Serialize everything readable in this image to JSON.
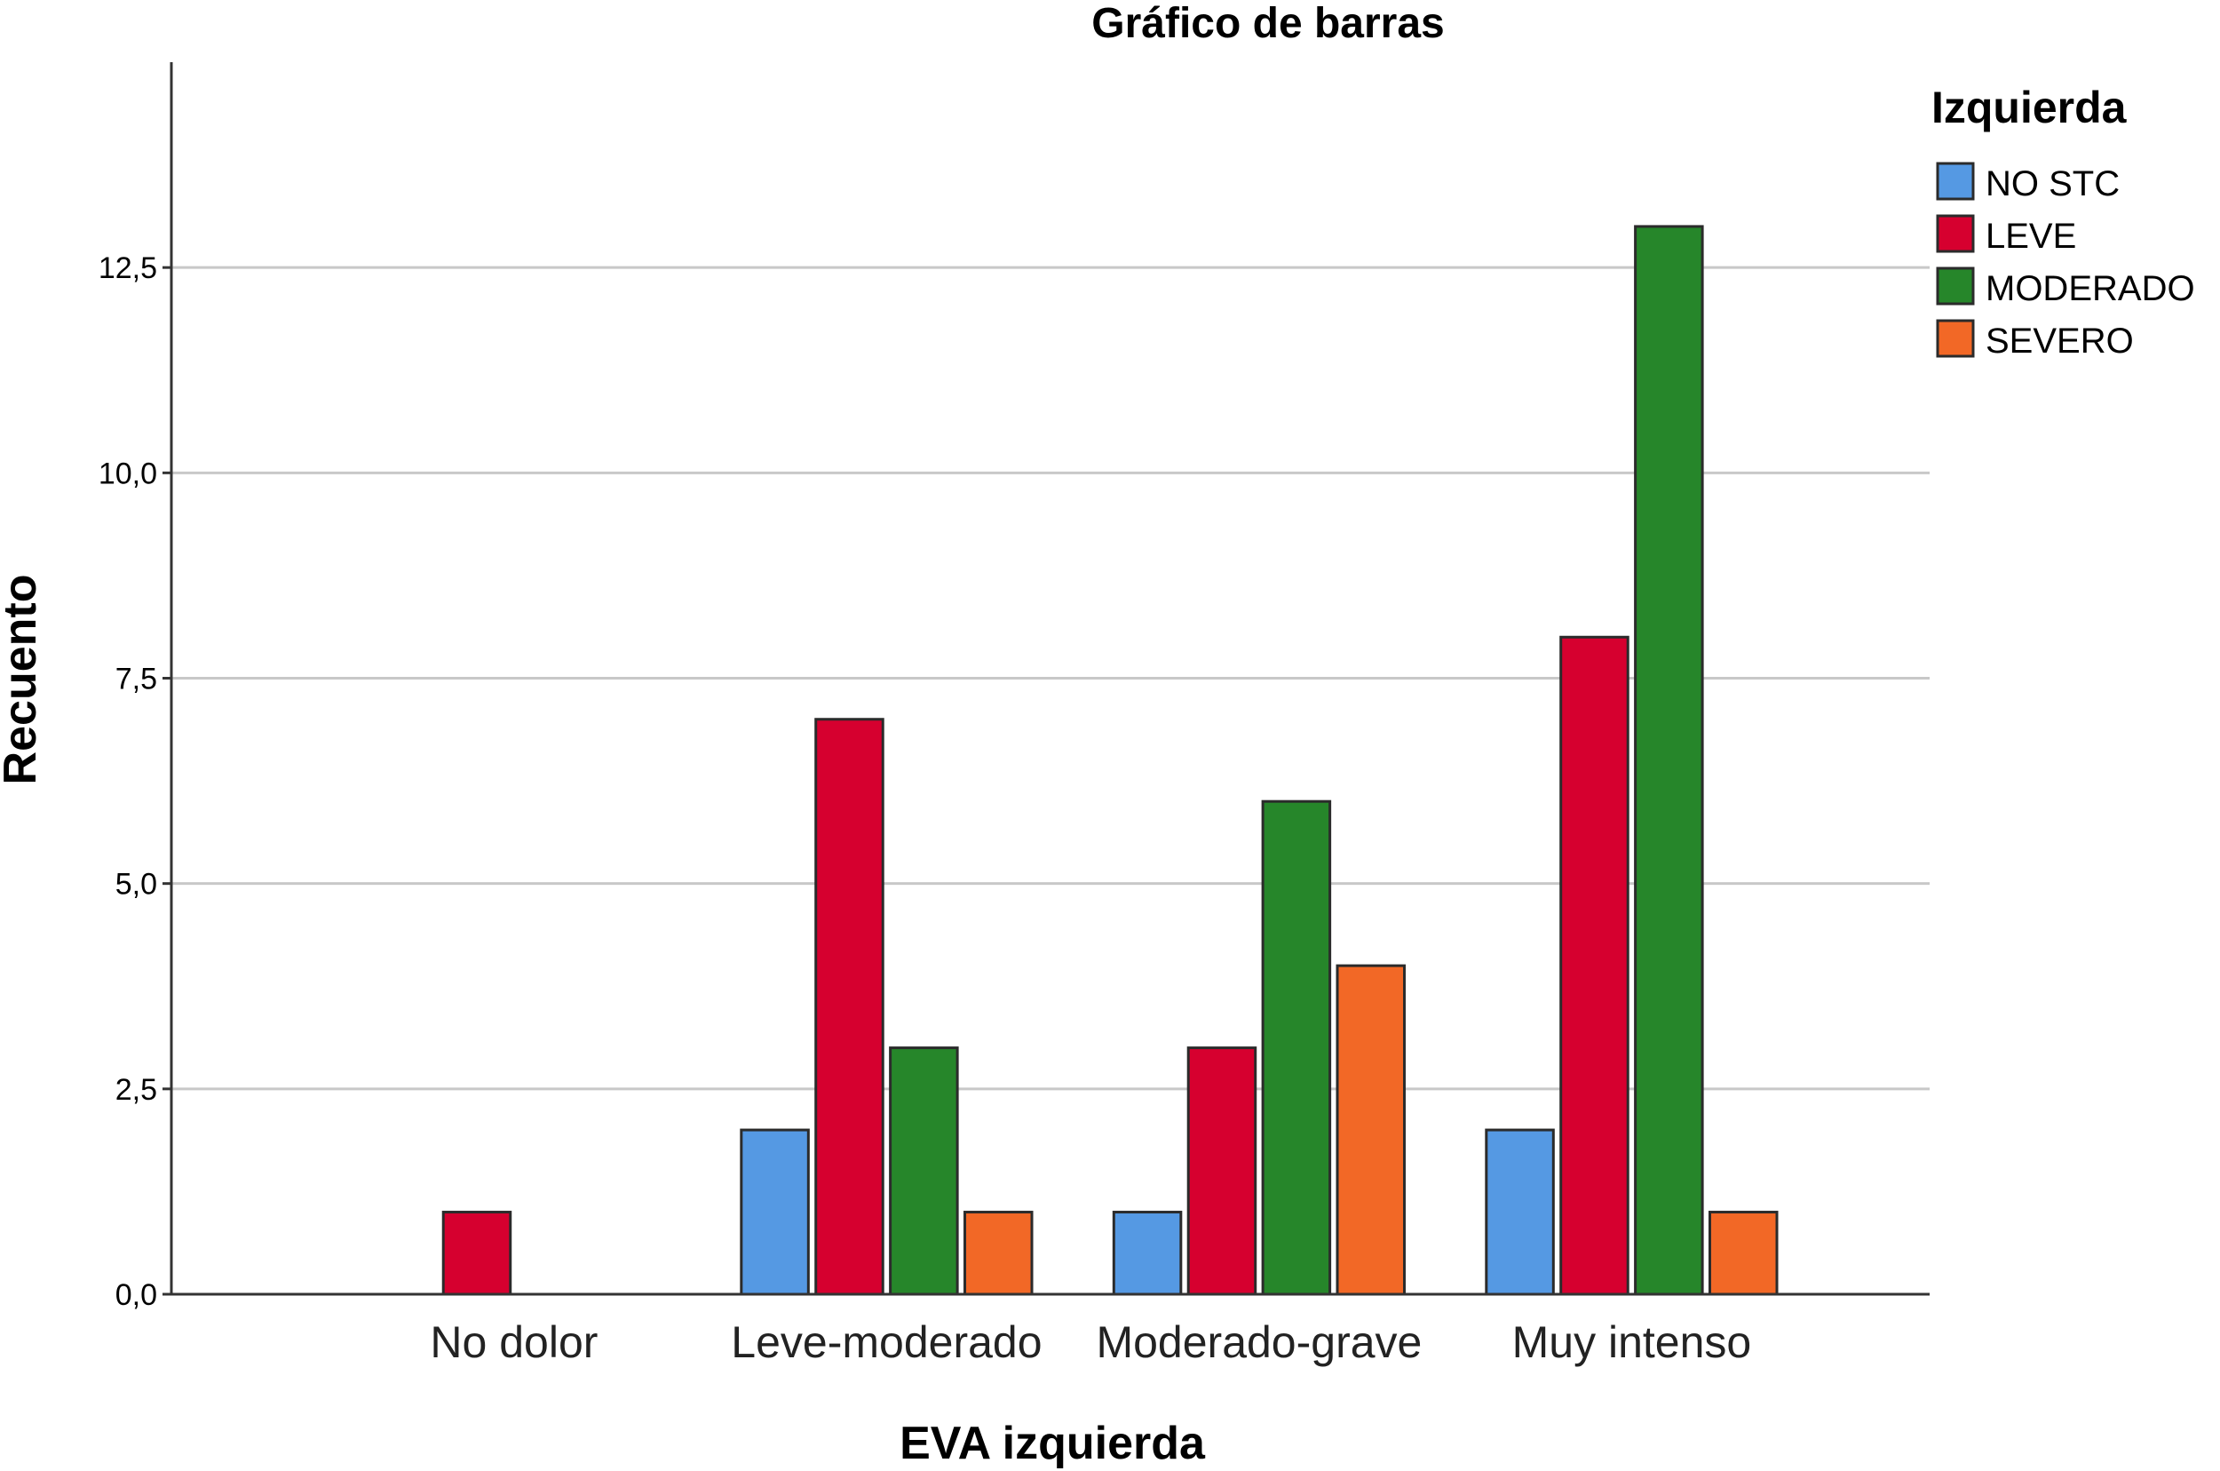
{
  "chart_data": {
    "type": "bar",
    "title": "Gráfico de barras",
    "xlabel": "EVA izquierda",
    "ylabel": "Recuento",
    "ylim": [
      0,
      15
    ],
    "yticks": [
      0,
      2.5,
      5,
      7.5,
      10,
      12.5
    ],
    "ytick_labels": [
      "0,0",
      "2,5",
      "5,0",
      "7,5",
      "10,0",
      "12,5"
    ],
    "grid": true,
    "legend_title": "Izquierda",
    "legend_position": "top-right",
    "categories": [
      "No dolor",
      "Leve-moderado",
      "Moderado-grave",
      "Muy intenso"
    ],
    "series": [
      {
        "name": "NO STC",
        "color": "#5599e3",
        "values": [
          0,
          2,
          1,
          2
        ]
      },
      {
        "name": "LEVE",
        "color": "#d6002f",
        "values": [
          1,
          7,
          3,
          8
        ]
      },
      {
        "name": "MODERADO",
        "color": "#26862a",
        "values": [
          0,
          3,
          6,
          13
        ]
      },
      {
        "name": "SEVERO",
        "color": "#f26826",
        "values": [
          0,
          1,
          4,
          1
        ]
      }
    ]
  }
}
